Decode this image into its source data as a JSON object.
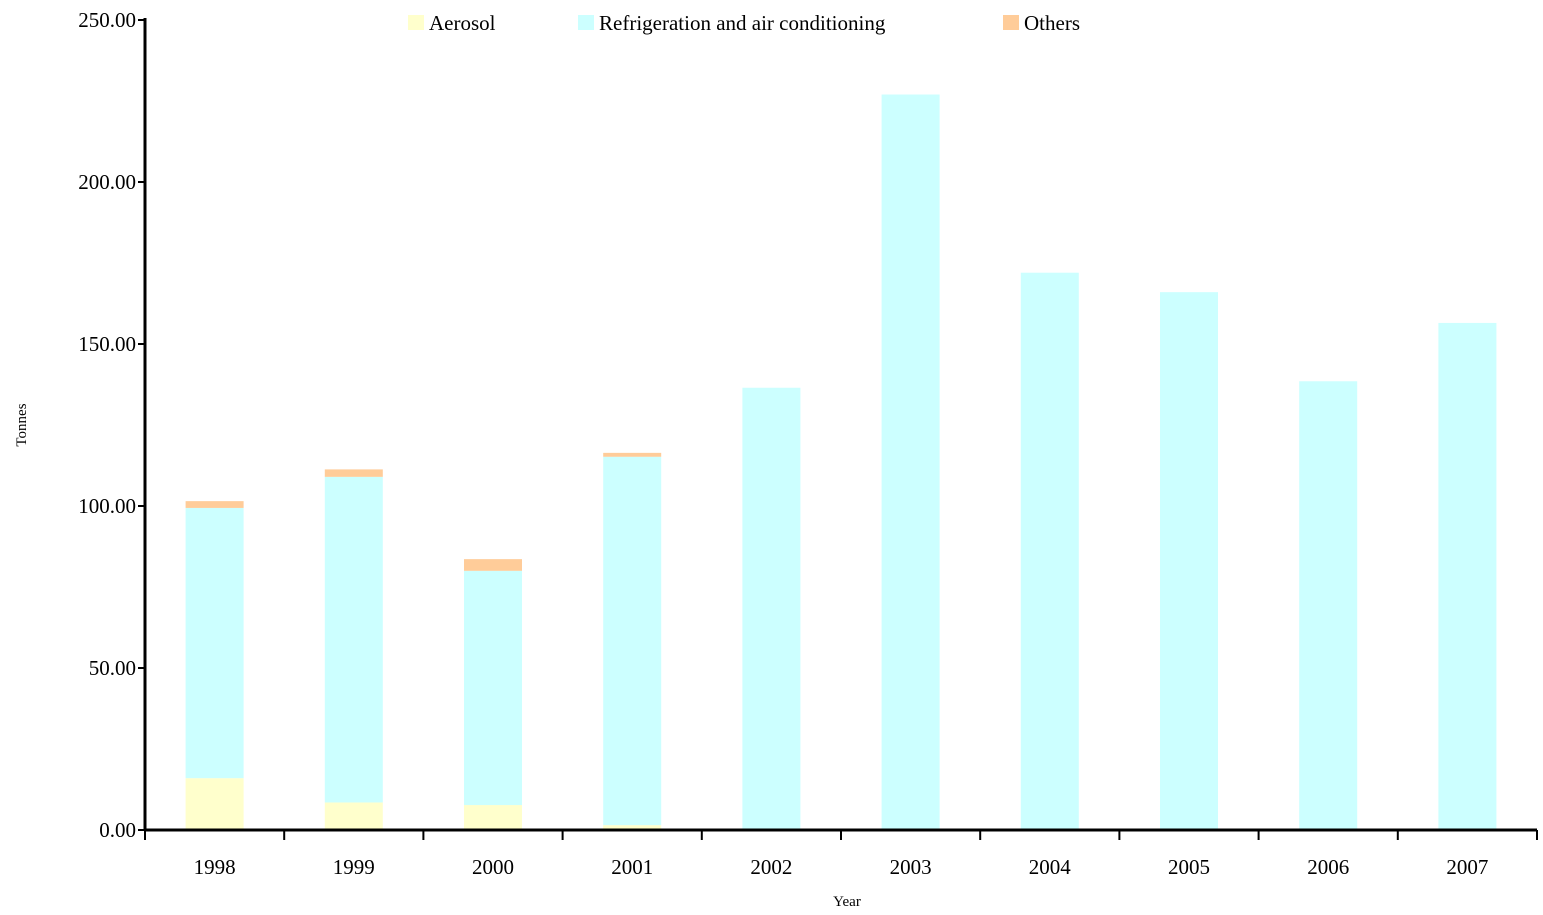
{
  "chart_data": {
    "type": "bar",
    "stacked": true,
    "title": "",
    "xlabel": "Year",
    "ylabel": "Tonnes",
    "ylim": [
      0,
      250
    ],
    "yticks": [
      "0.00",
      "50.00",
      "100.00",
      "150.00",
      "200.00",
      "250.00"
    ],
    "grid": false,
    "legend_position": "top",
    "categories": [
      "1998",
      "1999",
      "2000",
      "2001",
      "2002",
      "2003",
      "2004",
      "2005",
      "2006",
      "2007"
    ],
    "series": [
      {
        "name": "Aerosol",
        "color": "#FFFFCC",
        "values": [
          16.0,
          8.5,
          7.7,
          1.5,
          0,
          0,
          0,
          0,
          0,
          0
        ]
      },
      {
        "name": "Refrigeration and air conditioning",
        "color": "#CCFFFF",
        "values": [
          83.4,
          100.5,
          72.3,
          113.7,
          136.5,
          227.0,
          172.0,
          166.0,
          138.5,
          156.5
        ]
      },
      {
        "name": "Others",
        "color": "#FFCC99",
        "values": [
          2.1,
          2.3,
          3.6,
          1.2,
          0,
          0,
          0,
          0,
          0,
          0
        ]
      }
    ]
  }
}
